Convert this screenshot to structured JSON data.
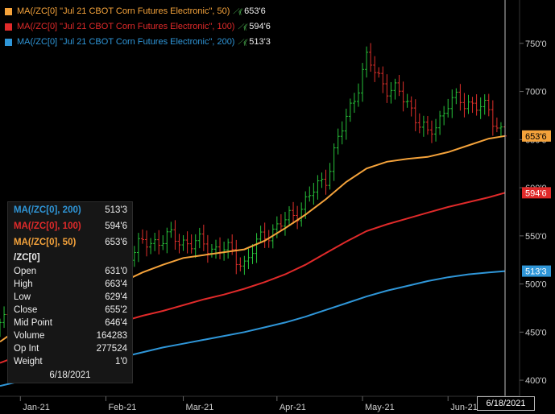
{
  "legend": [
    {
      "label": "MA(/ZC[0] \"Jul 21 CBOT Corn Futures Electronic\", 50)",
      "value": "653'6",
      "color": "#f5a33b"
    },
    {
      "label": "MA(/ZC[0] \"Jul 21 CBOT Corn Futures Electronic\", 100)",
      "value": "594'6",
      "color": "#e02a2a"
    },
    {
      "label": "MA(/ZC[0] \"Jul 21 CBOT Corn Futures Electronic\", 200)",
      "value": "513'3",
      "color": "#2f96d8"
    }
  ],
  "tooltip": {
    "ma200": {
      "label": "MA(/ZC[0], 200)",
      "value": "513'3"
    },
    "ma100": {
      "label": "MA(/ZC[0], 100)",
      "value": "594'6"
    },
    "ma50": {
      "label": "MA(/ZC[0], 50)",
      "value": "653'6"
    },
    "symbol": "/ZC[0]",
    "rows": [
      {
        "label": "Open",
        "value": "631'0"
      },
      {
        "label": "High",
        "value": "663'4"
      },
      {
        "label": "Low",
        "value": "629'4"
      },
      {
        "label": "Close",
        "value": "655'2"
      },
      {
        "label": "Mid Point",
        "value": "646'4"
      },
      {
        "label": "Volume",
        "value": "164283"
      },
      {
        "label": "Op Int",
        "value": "277524"
      },
      {
        "label": "Weight",
        "value": "1'0"
      }
    ],
    "date": "6/18/2021"
  },
  "crosshair_date": "6/18/2021",
  "chart_data": {
    "type": "line",
    "title": "",
    "ylabel": "",
    "ylim": [
      385,
      785
    ],
    "y_ticks": [
      400,
      450,
      500,
      550,
      600,
      650,
      700,
      750
    ],
    "y_tick_labels": [
      "400'0",
      "450'0",
      "500'0",
      "550'0",
      "600'0",
      "650'0",
      "700'0",
      "750'0"
    ],
    "x_tick_labels": [
      "Jan-21",
      "Feb-21",
      "Mar-21",
      "Apr-21",
      "May-21",
      "Jun-21"
    ],
    "x_tick_index": [
      5,
      26,
      45,
      68,
      89,
      110
    ],
    "x": [
      0,
      5,
      10,
      15,
      20,
      25,
      30,
      35,
      40,
      45,
      50,
      55,
      60,
      65,
      70,
      75,
      80,
      85,
      90,
      95,
      100,
      105,
      110,
      115,
      120,
      124
    ],
    "series": [
      {
        "name": "MA(/ZC[0], 50)",
        "color": "#f5a33b",
        "values": [
          440,
          455,
          468,
          475,
          482,
          492,
          502,
          512,
          520,
          527,
          530,
          533,
          536,
          545,
          558,
          572,
          588,
          606,
          620,
          627,
          630,
          632,
          637,
          644,
          651,
          653.75
        ]
      },
      {
        "name": "MA(/ZC[0], 100)",
        "color": "#e02a2a",
        "values": [
          418,
          426,
          434,
          441,
          448,
          455,
          461,
          467,
          472,
          478,
          484,
          489,
          495,
          502,
          510,
          520,
          532,
          544,
          555,
          562,
          568,
          574,
          580,
          585,
          590,
          594.75
        ]
      },
      {
        "name": "MA(/ZC[0], 200)",
        "color": "#2f96d8",
        "values": [
          394,
          399,
          404,
          409,
          414,
          419,
          424,
          429,
          434,
          438,
          442,
          446,
          450,
          455,
          460,
          466,
          473,
          480,
          487,
          493,
          498,
          503,
          507,
          510,
          512,
          513.375
        ]
      }
    ],
    "price_bars": {
      "x": [
        0,
        5,
        10,
        15,
        20,
        25,
        30,
        35,
        40,
        45,
        50,
        55,
        60,
        65,
        70,
        75,
        80,
        85,
        90,
        95,
        100,
        105,
        110,
        115,
        120,
        124
      ],
      "close": [
        455,
        476,
        500,
        505,
        510,
        527,
        530,
        540,
        548,
        545,
        540,
        536,
        522,
        552,
        564,
        585,
        612,
        672,
        732,
        705,
        690,
        652,
        688,
        690,
        678,
        655.25
      ]
    },
    "last_values": {
      "ma50": "653'6",
      "ma100": "594'6",
      "ma200": "513'3"
    },
    "grid": false,
    "legend_position": "top-left"
  }
}
